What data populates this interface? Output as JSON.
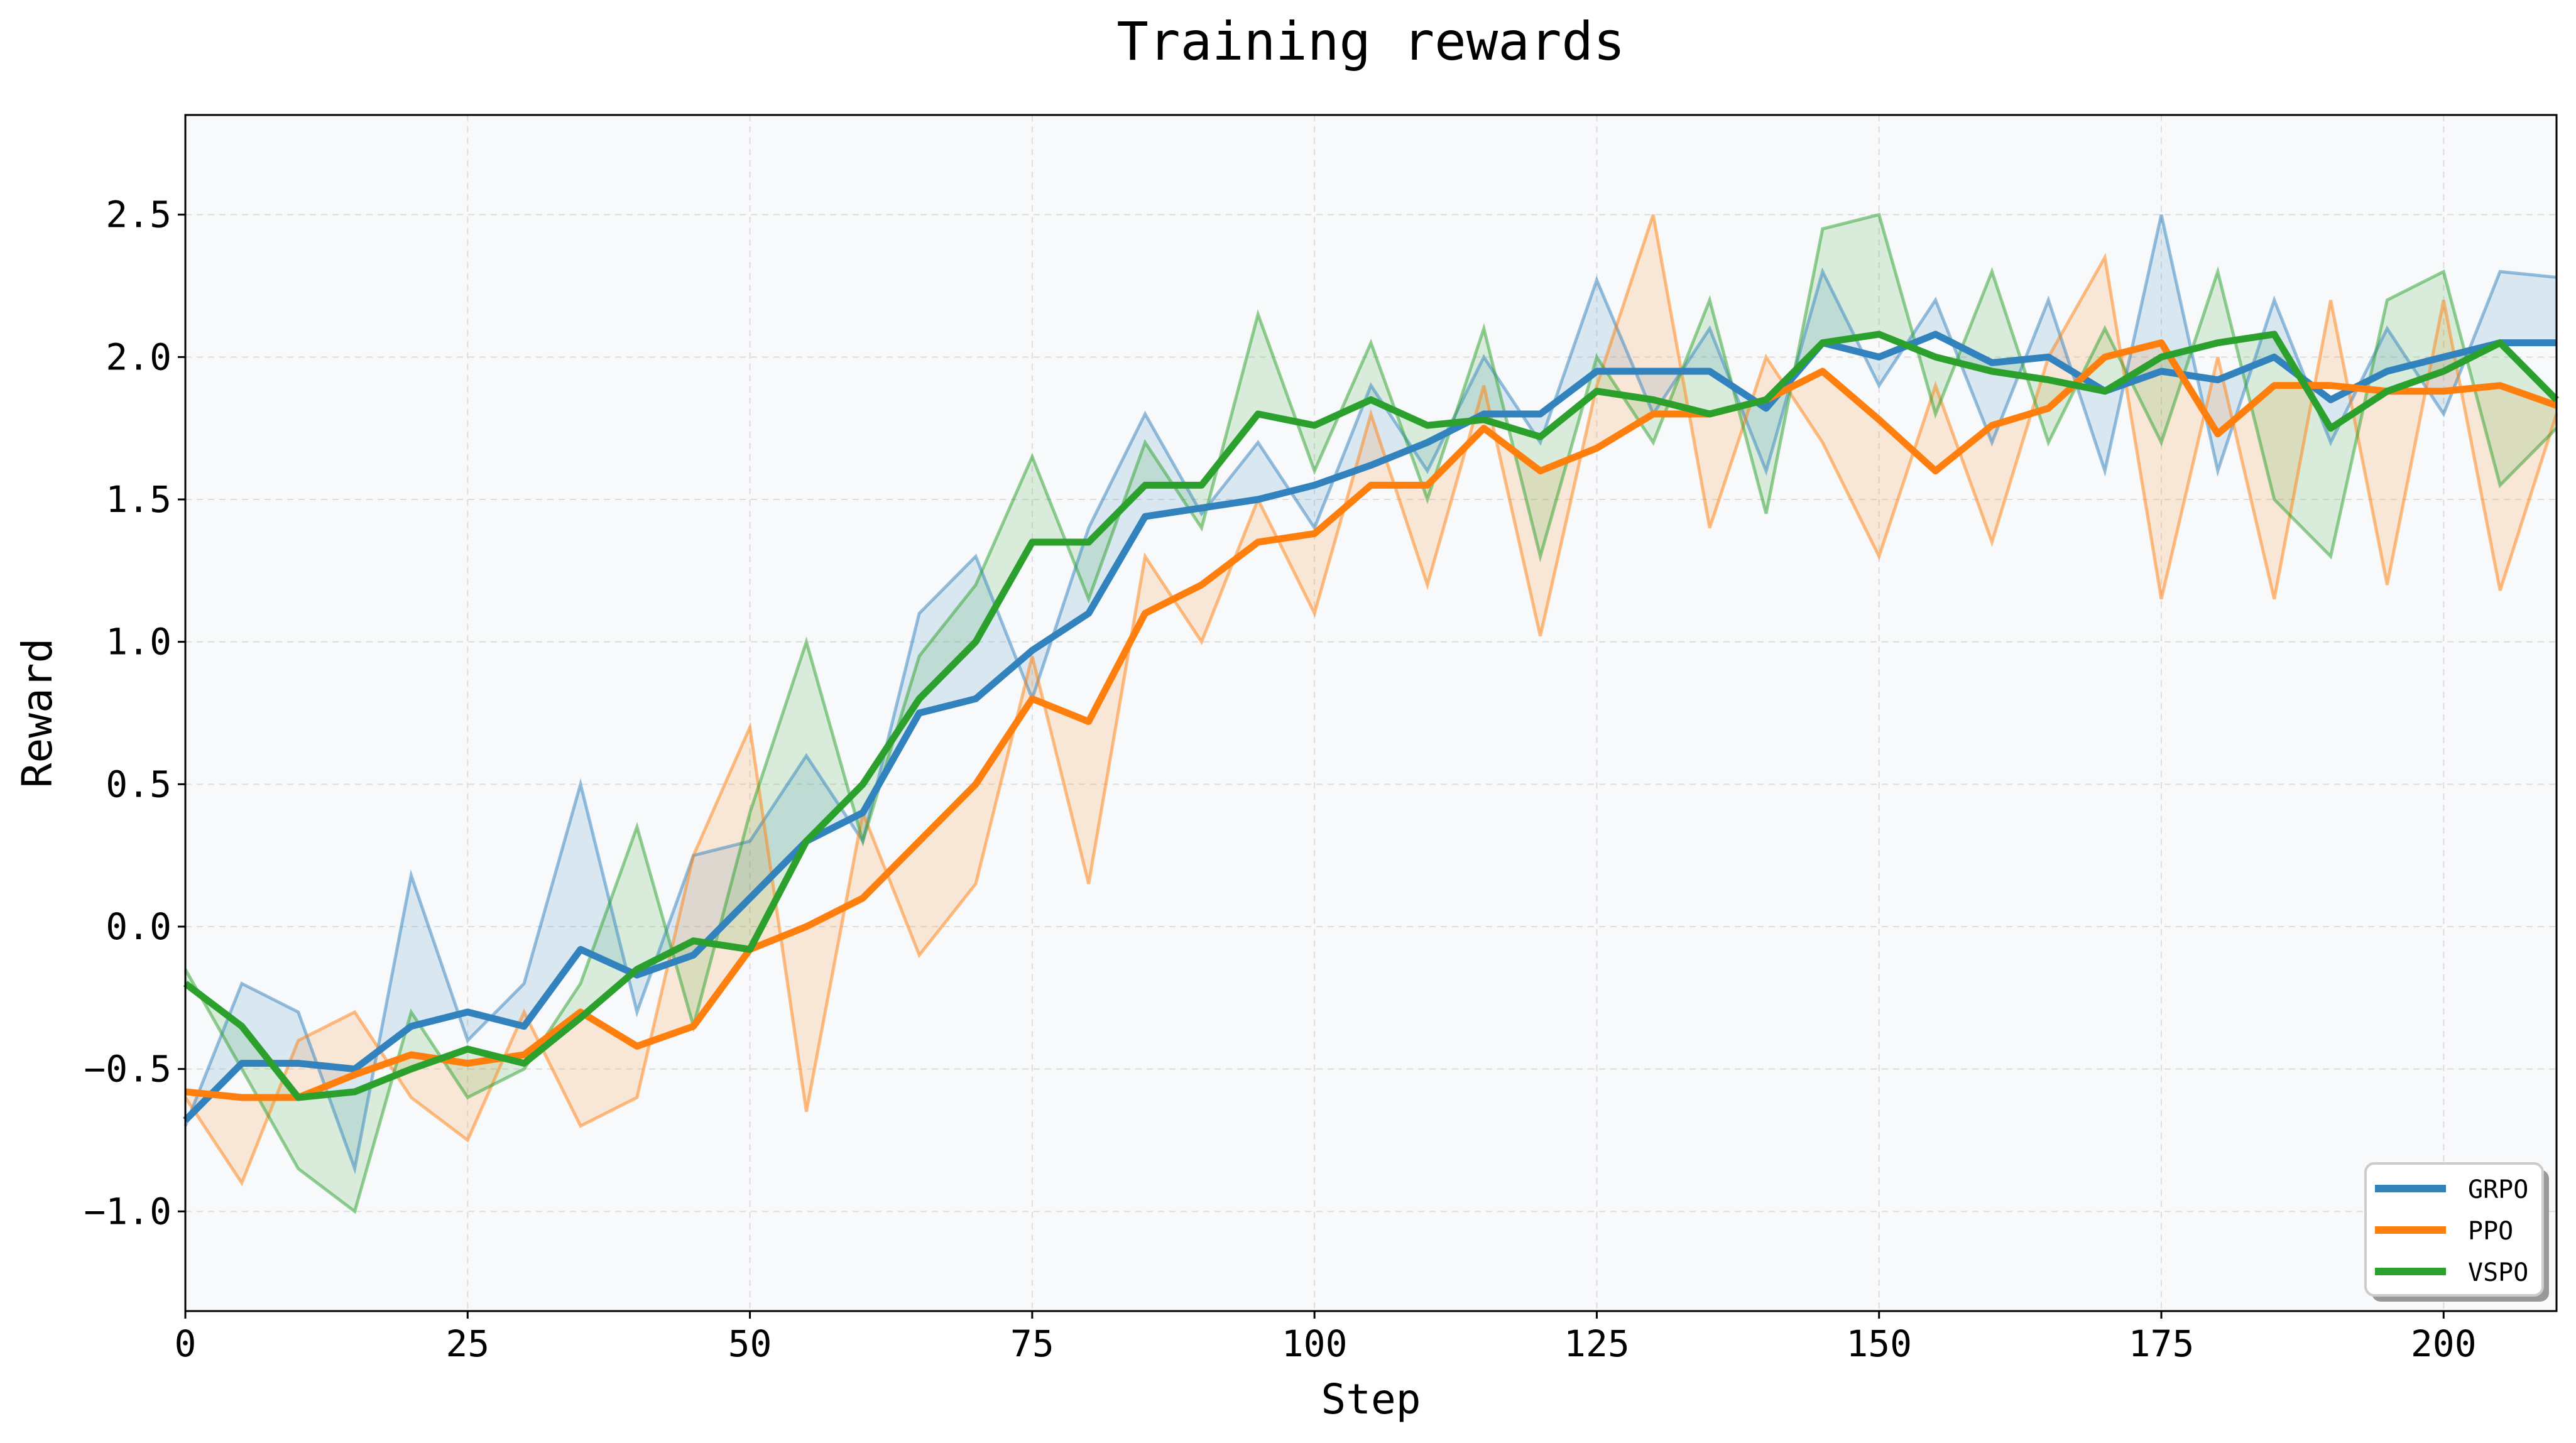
{
  "chart_data": {
    "type": "line",
    "title": "Training rewards",
    "xlabel": "Step",
    "ylabel": "Reward",
    "xlim": [
      0,
      210
    ],
    "ylim": [
      -1.35,
      2.85
    ],
    "xticks": [
      0,
      25,
      50,
      75,
      100,
      125,
      150,
      175,
      200
    ],
    "yticks": [
      -1.0,
      -0.5,
      0.0,
      0.5,
      1.0,
      1.5,
      2.0,
      2.5
    ],
    "ytick_labels": [
      "−1.0",
      "−0.5",
      "0.0",
      "0.5",
      "1.0",
      "1.5",
      "2.0",
      "2.5"
    ],
    "grid": true,
    "legend_position": "bottom-right",
    "background": "#f7f9fb",
    "x": [
      0,
      5,
      10,
      15,
      20,
      25,
      30,
      35,
      40,
      45,
      50,
      55,
      60,
      65,
      70,
      75,
      80,
      85,
      90,
      95,
      100,
      105,
      110,
      115,
      120,
      125,
      130,
      135,
      140,
      145,
      150,
      155,
      160,
      165,
      170,
      175,
      180,
      185,
      190,
      195,
      200,
      205,
      210
    ],
    "series": [
      {
        "name": "GRPO",
        "color": "#3182bd",
        "smoothed": [
          -0.68,
          -0.48,
          -0.48,
          -0.5,
          -0.35,
          -0.3,
          -0.35,
          -0.08,
          -0.17,
          -0.1,
          0.1,
          0.3,
          0.4,
          0.75,
          0.8,
          0.97,
          1.1,
          1.44,
          1.47,
          1.5,
          1.55,
          1.62,
          1.7,
          1.8,
          1.8,
          1.95,
          1.95,
          1.95,
          1.82,
          2.05,
          2.0,
          2.08,
          1.98,
          2.0,
          1.88,
          1.95,
          1.92,
          2.0,
          1.85,
          1.95,
          2.0,
          2.05,
          2.05
        ],
        "raw": [
          -0.7,
          -0.2,
          -0.3,
          -0.85,
          0.18,
          -0.4,
          -0.2,
          0.5,
          -0.3,
          0.25,
          0.3,
          0.6,
          0.3,
          1.1,
          1.3,
          0.8,
          1.4,
          1.8,
          1.45,
          1.7,
          1.4,
          1.9,
          1.6,
          2.0,
          1.7,
          2.27,
          1.8,
          2.1,
          1.6,
          2.3,
          1.9,
          2.2,
          1.7,
          2.2,
          1.6,
          2.5,
          1.6,
          2.2,
          1.7,
          2.1,
          1.8,
          2.3,
          2.28
        ]
      },
      {
        "name": "PPO",
        "color": "#ff7f0e",
        "smoothed": [
          -0.58,
          -0.6,
          -0.6,
          -0.52,
          -0.45,
          -0.48,
          -0.45,
          -0.3,
          -0.42,
          -0.35,
          -0.08,
          0.0,
          0.1,
          0.3,
          0.5,
          0.8,
          0.72,
          1.1,
          1.2,
          1.35,
          1.38,
          1.55,
          1.55,
          1.75,
          1.6,
          1.68,
          1.8,
          1.8,
          1.85,
          1.95,
          1.78,
          1.6,
          1.76,
          1.82,
          2.0,
          2.05,
          1.73,
          1.9,
          1.9,
          1.88,
          1.88,
          1.9,
          1.83
        ],
        "raw": [
          -0.6,
          -0.9,
          -0.4,
          -0.3,
          -0.6,
          -0.75,
          -0.3,
          -0.7,
          -0.6,
          0.25,
          0.7,
          -0.65,
          0.4,
          -0.1,
          0.15,
          0.95,
          0.15,
          1.3,
          1.0,
          1.5,
          1.1,
          1.8,
          1.2,
          1.9,
          1.02,
          1.9,
          2.5,
          1.4,
          2.0,
          1.7,
          1.3,
          1.9,
          1.35,
          2.0,
          2.35,
          1.15,
          2.0,
          1.15,
          2.2,
          1.2,
          2.2,
          1.18,
          1.8
        ]
      },
      {
        "name": "VSPO",
        "color": "#2ca02c",
        "smoothed": [
          -0.2,
          -0.35,
          -0.6,
          -0.58,
          -0.5,
          -0.43,
          -0.48,
          -0.32,
          -0.15,
          -0.05,
          -0.08,
          0.3,
          0.5,
          0.8,
          1.0,
          1.35,
          1.35,
          1.55,
          1.55,
          1.8,
          1.76,
          1.85,
          1.76,
          1.78,
          1.72,
          1.88,
          1.85,
          1.8,
          1.85,
          2.05,
          2.08,
          2.0,
          1.95,
          1.92,
          1.88,
          2.0,
          2.05,
          2.08,
          1.75,
          1.88,
          1.95,
          2.05,
          1.85
        ],
        "raw": [
          -0.15,
          -0.5,
          -0.85,
          -1.0,
          -0.3,
          -0.6,
          -0.5,
          -0.2,
          0.35,
          -0.35,
          0.4,
          1.0,
          0.3,
          0.95,
          1.2,
          1.65,
          1.15,
          1.7,
          1.4,
          2.15,
          1.6,
          2.05,
          1.5,
          2.1,
          1.3,
          2.0,
          1.7,
          2.2,
          1.45,
          2.45,
          2.5,
          1.8,
          2.3,
          1.7,
          2.1,
          1.7,
          2.3,
          1.5,
          1.3,
          2.2,
          2.3,
          1.55,
          1.75
        ]
      }
    ]
  }
}
